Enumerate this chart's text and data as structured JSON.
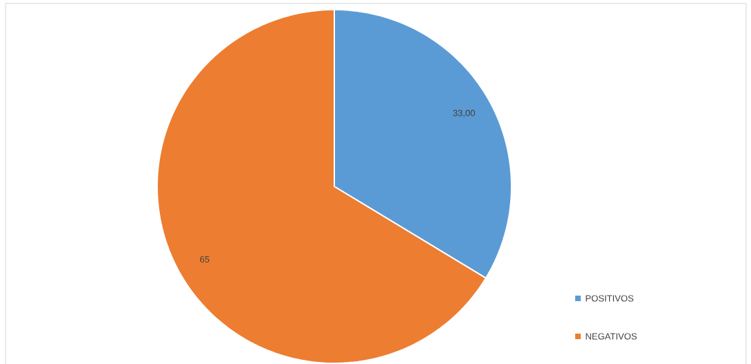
{
  "chart_data": {
    "type": "pie",
    "categories": [
      "POSITIVOS",
      "NEGATIVOS"
    ],
    "values": [
      33,
      65
    ],
    "colors": [
      "#5b9bd5",
      "#ed7d31"
    ],
    "value_labels": [
      "33,00",
      "65"
    ],
    "legend": "bottom right"
  }
}
